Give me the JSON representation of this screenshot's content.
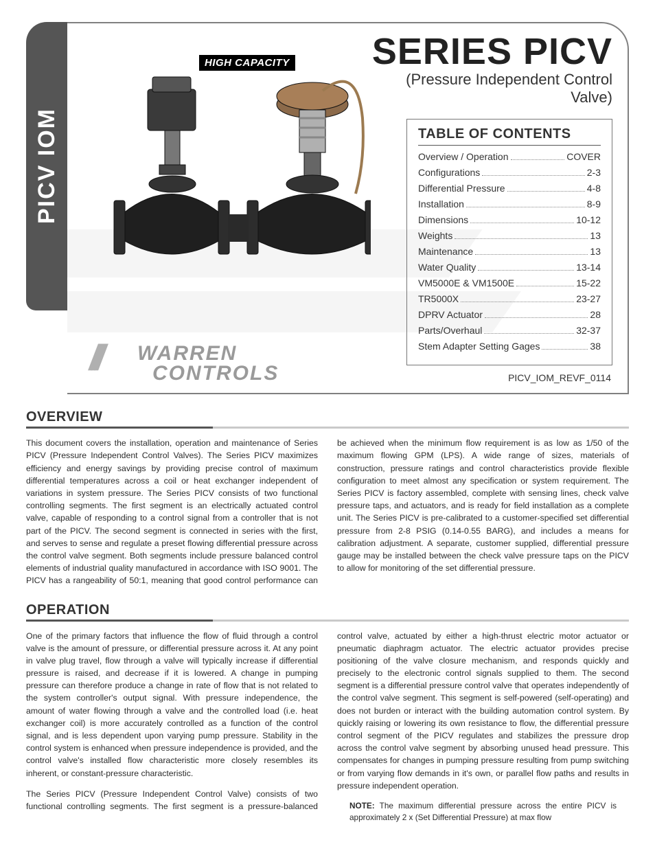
{
  "sidebar_title": "PICV IOM",
  "badge": "HIGH CAPACITY",
  "logo": {
    "line1": "WARREN",
    "line2": "CONTROLS"
  },
  "title": "SERIES PICV",
  "subtitle": "(Pressure Independent Control Valve)",
  "doc_rev": "PICV_IOM_REVF_0114",
  "toc": {
    "heading": "TABLE OF CONTENTS",
    "items": [
      {
        "label": "Overview / Operation",
        "page": "COVER"
      },
      {
        "label": "Configurations",
        "page": "2-3"
      },
      {
        "label": "Differential Pressure",
        "page": "4-8"
      },
      {
        "label": "Installation",
        "page": "8-9"
      },
      {
        "label": "Dimensions",
        "page": "10-12"
      },
      {
        "label": "Weights",
        "page": "13"
      },
      {
        "label": "Maintenance",
        "page": "13"
      },
      {
        "label": "Water Quality",
        "page": "13-14"
      },
      {
        "label": "VM5000E & VM1500E",
        "page": "15-22"
      },
      {
        "label": "TR5000X",
        "page": "23-27"
      },
      {
        "label": "DPRV Actuator",
        "page": "28"
      },
      {
        "label": "Parts/Overhaul",
        "page": "32-37"
      },
      {
        "label": "Stem Adapter Setting Gages",
        "page": "38"
      }
    ]
  },
  "sections": {
    "overview": {
      "heading": "OVERVIEW",
      "body": "This document covers the installation, operation and maintenance of Series PICV (Pressure Independent Control Valves). The Series PICV maximizes efficiency and energy savings by providing precise control of maximum differential temperatures across a coil or heat exchanger independent of variations in system pressure. The Series PICV consists of two functional controlling segments. The first segment is an electrically actuated control valve, capable of responding to a control signal from a controller that is not part of the PICV. The second segment is connected in series with the first, and serves to sense and regulate a preset flowing differential pressure across the control valve segment. Both segments include pressure balanced control elements of industrial quality manufactured in accordance with ISO 9001. The PICV has a rangeability of 50:1, meaning that good control performance can be achieved when the minimum flow requirement is as low as 1/50 of the maximum flowing GPM (LPS). A wide range of sizes, materials of construction, pressure ratings and control characteristics provide flexible configuration to meet almost any specification or system requirement. The Series PICV is factory assembled, complete with sensing lines, check valve pressure taps, and actuators, and is ready for field installation as a complete unit. The Series PICV is pre-calibrated to a customer-specified set differential pressure from 2-8 PSIG (0.14-0.55 BARG), and includes a means for calibration adjustment. A separate, customer supplied, differential pressure gauge may be installed between the check valve pressure taps on the PICV to allow for monitoring of the set differential pressure."
    },
    "operation": {
      "heading": "OPERATION",
      "p1": "One of the primary factors that influence the flow of fluid through a control valve is the amount of pressure, or differential pressure across it. At any point in valve plug travel, flow through a valve will typically increase if differential pressure is raised, and decrease if it is lowered. A change in pumping pressure can therefore produce a change in rate of flow that is not related to the system controller's output signal. With pressure independence, the amount of water flowing through a valve and the controlled load (i.e. heat exchanger coil) is more accurately controlled as a function of the control signal, and is less dependent upon varying pump pressure. Stability in the control system is enhanced when pressure independence is provided, and the control valve's installed flow characteristic more closely resembles its inherent, or constant-pressure characteristic.",
      "p2": "The Series PICV (Pressure Independent Control Valve) consists of two functional controlling segments. The first segment is a pressure-balanced control valve, actuated by either a high-thrust electric motor actuator or pneumatic diaphragm actuator. The electric actuator provides precise positioning of the valve closure mechanism, and responds quickly and precisely to the electronic control signals supplied to them. The second segment is a differential pressure control valve that operates independently of the control valve segment. This segment is self-powered (self-operating) and does not burden or interact with the building automation control system. By quickly raising or lowering its own resistance to flow, the differential pressure control segment of the PICV regulates and stabilizes the pressure drop across the control valve segment by absorbing unused head pressure. This compensates for changes in pumping pressure resulting from pump switching or from varying flow demands in it's own, or parallel flow paths and results in pressure independent operation.",
      "note_label": "NOTE:",
      "note_body": " The maximum differential pressure across the entire PICV is approximately 2 x (Set Differential Pressure) at max flow"
    }
  },
  "style": {
    "page_bg": "#ffffff",
    "text_color": "#333333",
    "sidebar_bg": "#555555",
    "sidebar_text": "#ffffff",
    "border_color": "#808080",
    "rule_dark": "#555555",
    "rule_light": "#c9c9c9",
    "badge_bg": "#000000",
    "badge_text": "#ffffff",
    "logo_color": "#9a9a9a",
    "title_fontsize_pt": 40,
    "subtitle_fontsize_pt": 16,
    "heading_fontsize_pt": 15,
    "body_fontsize_pt": 9,
    "toc_fontsize_pt": 10
  }
}
